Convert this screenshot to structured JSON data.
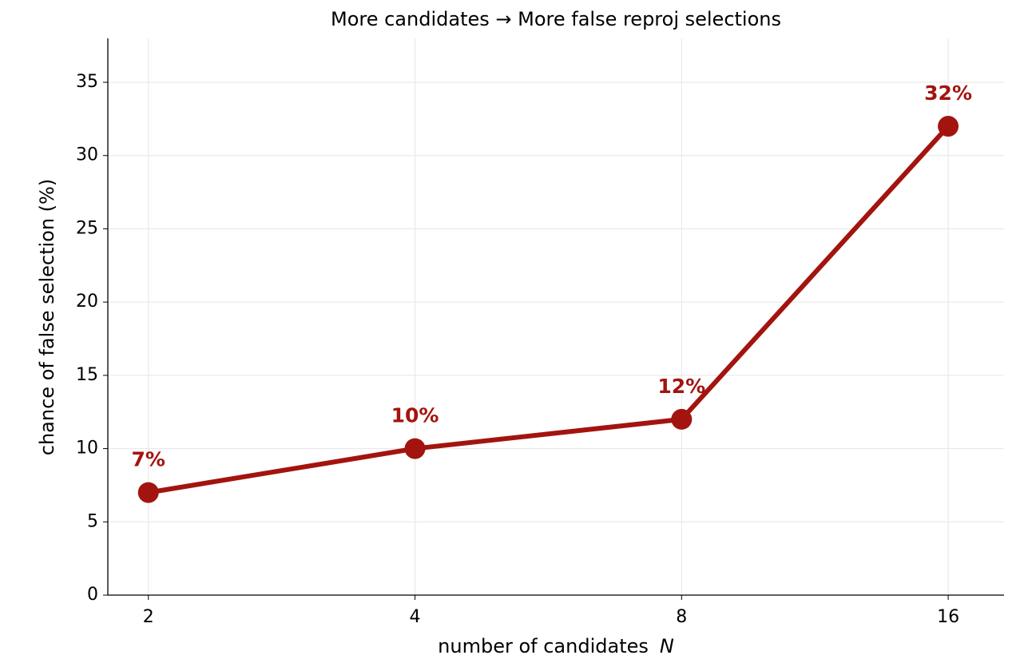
{
  "chart_data": {
    "type": "line",
    "title": "More candidates → More false reproj selections",
    "xlabel": {
      "text": "number of candidates",
      "symbol": "N"
    },
    "ylabel": "chance of false selection  (%)",
    "x": [
      2,
      4,
      8,
      16
    ],
    "xscale": "log",
    "xlim": [
      1.8,
      18.5
    ],
    "xticks": [
      2,
      4,
      8,
      16
    ],
    "ylim": [
      0,
      38
    ],
    "yticks": [
      0,
      5,
      10,
      15,
      20,
      25,
      30,
      35
    ],
    "grid": true,
    "series": [
      {
        "color": "#a3140f",
        "values": [
          7,
          10,
          12,
          32
        ],
        "value_labels": [
          "7%",
          "10%",
          "12%",
          "32%"
        ]
      }
    ]
  }
}
